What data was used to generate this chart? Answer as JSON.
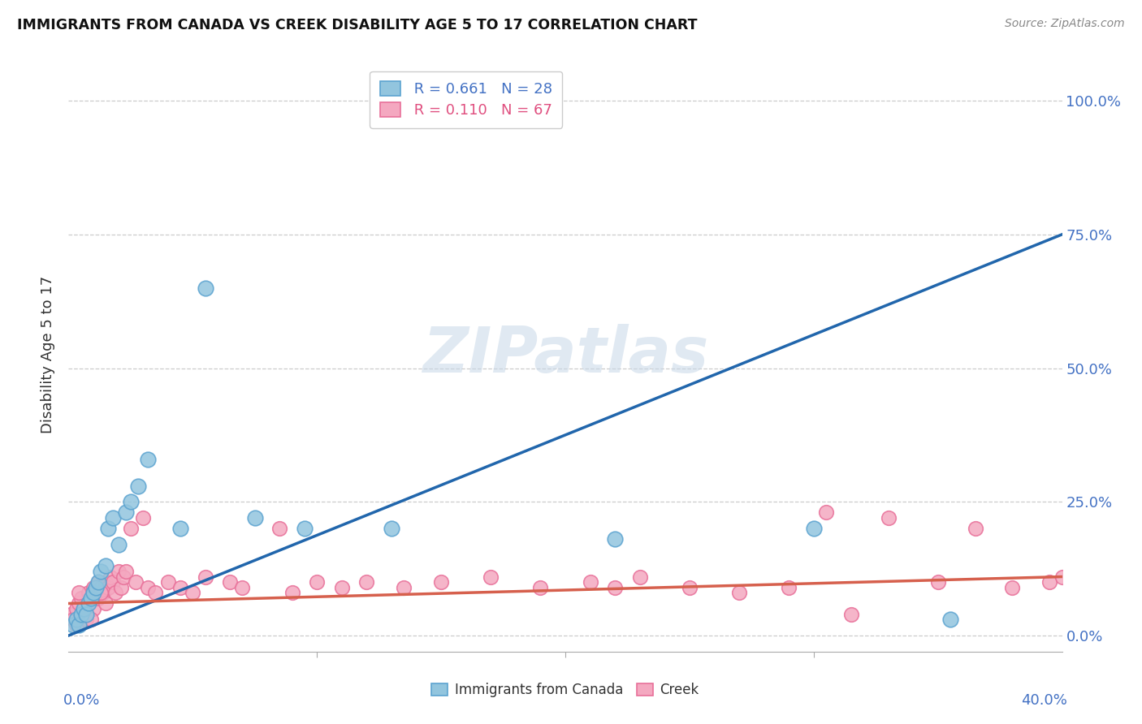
{
  "title": "IMMIGRANTS FROM CANADA VS CREEK DISABILITY AGE 5 TO 17 CORRELATION CHART",
  "source": "Source: ZipAtlas.com",
  "ylabel": "Disability Age 5 to 17",
  "ytick_values": [
    0,
    25,
    50,
    75,
    100
  ],
  "xlim": [
    0,
    40
  ],
  "ylim": [
    -3,
    108
  ],
  "legend1_r": "0.661",
  "legend1_n": "28",
  "legend2_r": "0.110",
  "legend2_n": "67",
  "blue_marker_color": "#92c5de",
  "blue_edge_color": "#5ba3d0",
  "pink_marker_color": "#f4a8c0",
  "pink_edge_color": "#e87099",
  "line_blue": "#2166ac",
  "line_pink": "#d6604d",
  "watermark": "ZIPatlas",
  "blue_scatter_x": [
    0.2,
    0.3,
    0.4,
    0.5,
    0.6,
    0.7,
    0.8,
    0.9,
    1.0,
    1.1,
    1.2,
    1.3,
    1.5,
    1.6,
    1.8,
    2.0,
    2.3,
    2.5,
    2.8,
    3.2,
    4.5,
    5.5,
    7.5,
    9.5,
    13.0,
    22.0,
    30.0,
    35.5
  ],
  "blue_scatter_y": [
    2,
    3,
    2,
    4,
    5,
    4,
    6,
    7,
    8,
    9,
    10,
    12,
    13,
    20,
    22,
    17,
    23,
    25,
    28,
    33,
    20,
    65,
    22,
    20,
    20,
    18,
    20,
    3
  ],
  "pink_scatter_x": [
    0.1,
    0.2,
    0.3,
    0.3,
    0.4,
    0.5,
    0.5,
    0.6,
    0.7,
    0.8,
    0.8,
    0.9,
    1.0,
    1.0,
    1.1,
    1.2,
    1.2,
    1.3,
    1.4,
    1.5,
    1.5,
    1.6,
    1.7,
    1.8,
    1.9,
    2.0,
    2.1,
    2.2,
    2.5,
    2.7,
    3.0,
    3.2,
    3.5,
    4.0,
    4.5,
    5.0,
    5.5,
    6.5,
    7.0,
    8.5,
    9.0,
    10.0,
    11.0,
    12.0,
    13.5,
    15.0,
    17.0,
    19.0,
    21.0,
    22.0,
    23.0,
    25.0,
    27.0,
    29.0,
    30.5,
    31.5,
    33.0,
    35.0,
    36.5,
    38.0,
    39.5,
    40.0,
    0.4,
    0.6,
    0.9,
    1.3,
    2.3
  ],
  "pink_scatter_y": [
    4,
    3,
    5,
    2,
    6,
    4,
    7,
    5,
    3,
    8,
    6,
    7,
    9,
    5,
    8,
    10,
    7,
    9,
    8,
    10,
    6,
    9,
    11,
    10,
    8,
    12,
    9,
    11,
    20,
    10,
    22,
    9,
    8,
    10,
    9,
    8,
    11,
    10,
    9,
    20,
    8,
    10,
    9,
    10,
    9,
    10,
    11,
    9,
    10,
    9,
    11,
    9,
    8,
    9,
    23,
    4,
    22,
    10,
    20,
    9,
    10,
    11,
    8,
    5,
    3,
    8,
    12
  ],
  "blue_line_x": [
    0,
    40
  ],
  "blue_line_y": [
    0,
    75
  ],
  "pink_line_x": [
    0,
    40
  ],
  "pink_line_y": [
    6,
    11
  ],
  "grid_color": "#cccccc",
  "axis_label_color": "#4472c4",
  "watermark_color": "#c8d8e8"
}
